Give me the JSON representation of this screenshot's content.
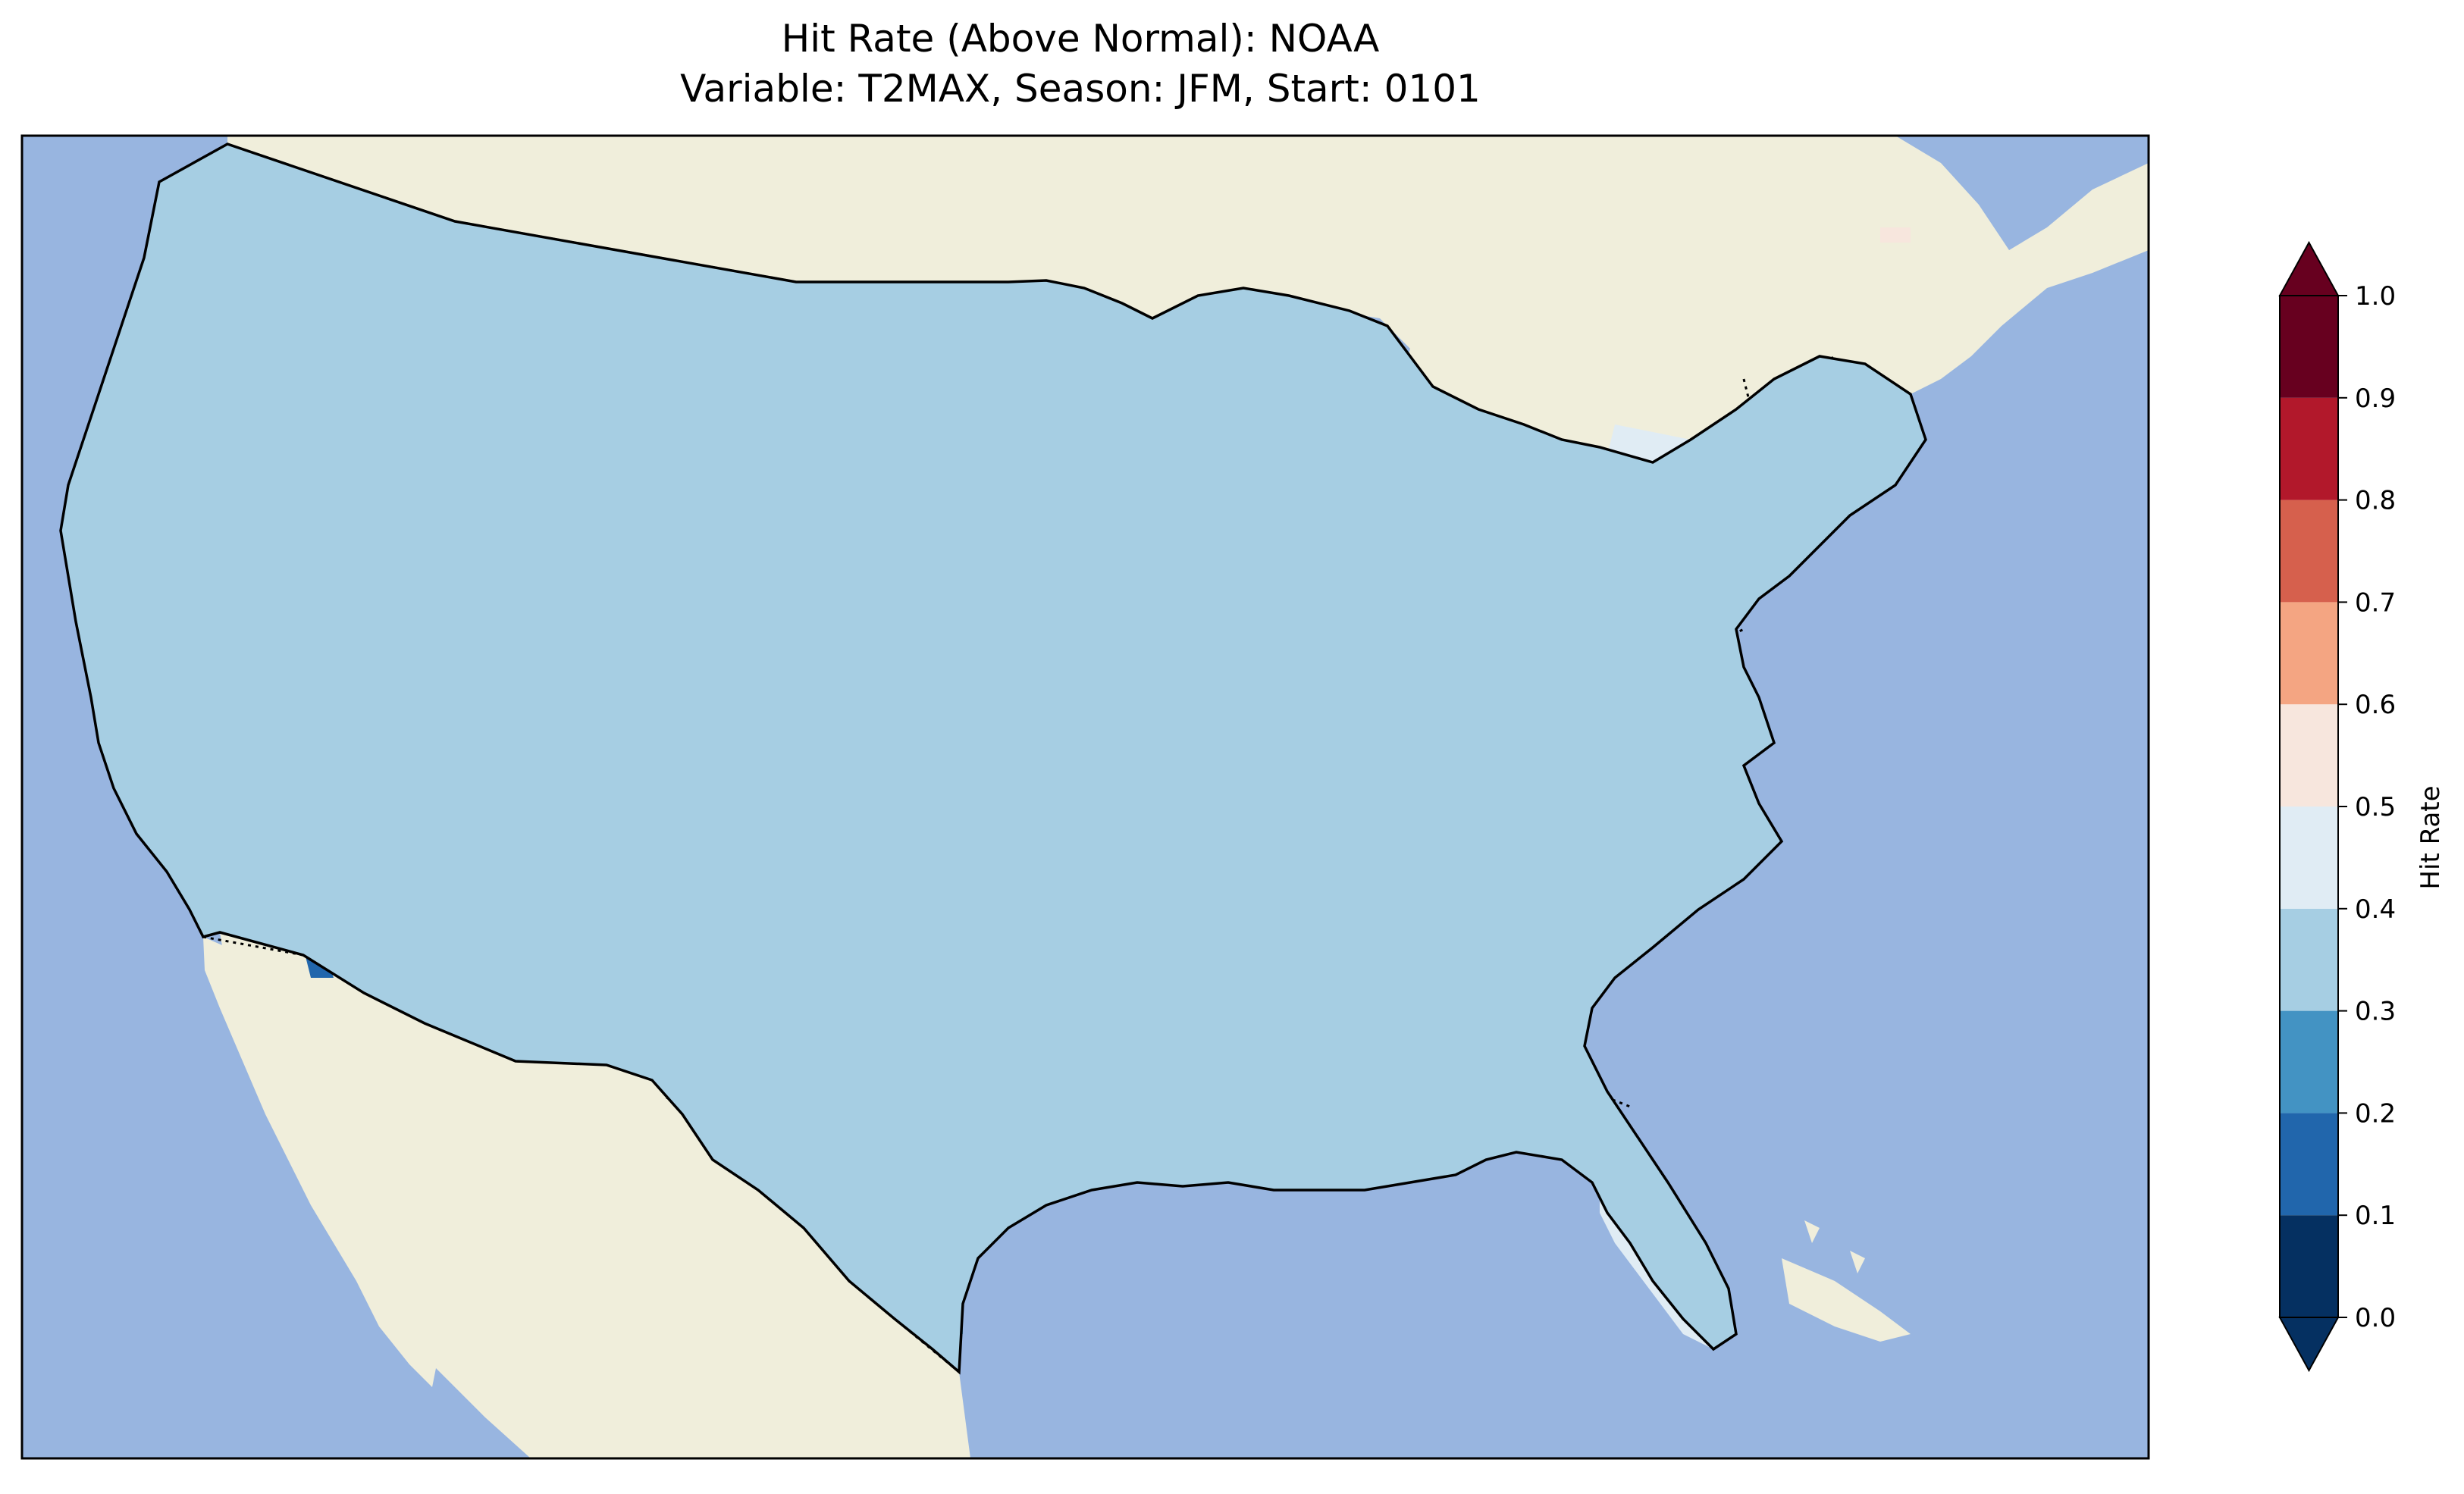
{
  "title_line1": "Hit Rate (Above Normal): NOAA",
  "title_line2": "Variable: T2MAX, Season: JFM, Start: 0101",
  "colors": {
    "ocean": "#98b5e0",
    "land_outside": "#f0eedb",
    "state_border": "#000000"
  },
  "colorbar": {
    "label": "Hit Rate",
    "ticks": [
      "0.0",
      "0.1",
      "0.2",
      "0.3",
      "0.4",
      "0.5",
      "0.6",
      "0.7",
      "0.8",
      "0.9",
      "1.0"
    ],
    "bins": [
      {
        "range": [
          0.0,
          0.1
        ],
        "color": "#053061"
      },
      {
        "range": [
          0.1,
          0.2
        ],
        "color": "#2166ac"
      },
      {
        "range": [
          0.2,
          0.3
        ],
        "color": "#4393c3"
      },
      {
        "range": [
          0.3,
          0.4
        ],
        "color": "#a6cee3"
      },
      {
        "range": [
          0.4,
          0.5
        ],
        "color": "#e0ecf4"
      },
      {
        "range": [
          0.5,
          0.6
        ],
        "color": "#f7e6dd"
      },
      {
        "range": [
          0.6,
          0.7
        ],
        "color": "#f4a582"
      },
      {
        "range": [
          0.7,
          0.8
        ],
        "color": "#d6604d"
      },
      {
        "range": [
          0.8,
          0.9
        ],
        "color": "#b2182b"
      },
      {
        "range": [
          0.9,
          1.0
        ],
        "color": "#67001f"
      }
    ],
    "extend": "both"
  }
}
